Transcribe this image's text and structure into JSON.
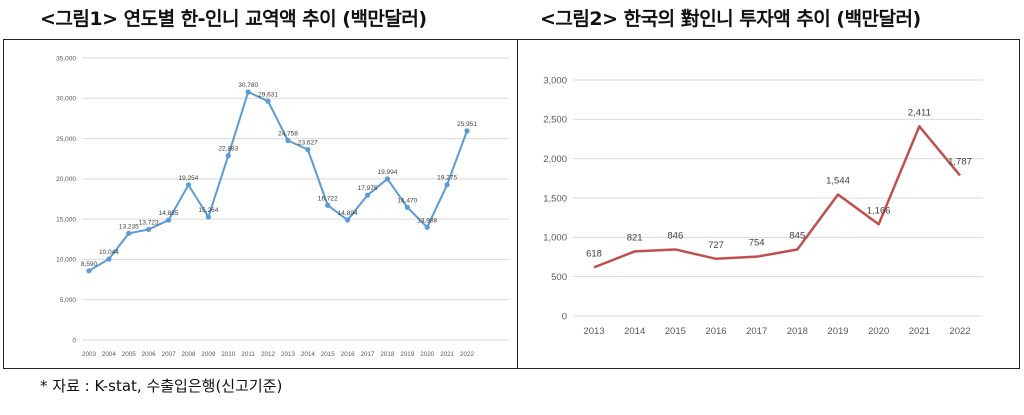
{
  "chart_data": [
    {
      "type": "line",
      "title": "<그림1> 연도별 한-인니 교역액 추이 (백만달러)",
      "xlabel": "",
      "ylabel": "",
      "categories": [
        "2003",
        "2004",
        "2005",
        "2006",
        "2007",
        "2008",
        "2009",
        "2010",
        "2011",
        "2012",
        "2013",
        "2014",
        "2015",
        "2016",
        "2017",
        "2018",
        "2019",
        "2020",
        "2021",
        "2022"
      ],
      "values": [
        8590,
        10044,
        13235,
        13723,
        14885,
        19254,
        15264,
        22883,
        30780,
        29631,
        24758,
        23627,
        16722,
        14894,
        17975,
        19994,
        16470,
        13988,
        19275,
        25951
      ],
      "value_labels": [
        "8,590",
        "10,044",
        "13,235",
        "13,723",
        "14,885",
        "19,254",
        "15,264",
        "22,883",
        "30,780",
        "29,631",
        "24,758",
        "23,627",
        "16,722",
        "14,894",
        "17,975",
        "19,994",
        "16,470",
        "13,988",
        "19,275",
        "25,951"
      ],
      "ylim": [
        0,
        35000
      ],
      "yticks": [
        0,
        5000,
        10000,
        15000,
        20000,
        25000,
        30000,
        35000
      ],
      "ytick_labels": [
        "0",
        "5,000",
        "10,000",
        "15,000",
        "20,000",
        "25,000",
        "30,000",
        "35,000"
      ],
      "grid": true,
      "color": "#5b9bd5"
    },
    {
      "type": "line",
      "title": "<그림2> 한국의 對인니 투자액 추이 (백만달러)",
      "xlabel": "",
      "ylabel": "",
      "categories": [
        "2013",
        "2014",
        "2015",
        "2016",
        "2017",
        "2018",
        "2019",
        "2020",
        "2021",
        "2022"
      ],
      "values": [
        618,
        821,
        846,
        727,
        754,
        845,
        1544,
        1166,
        2411,
        1787
      ],
      "value_labels": [
        "618",
        "821",
        "846",
        "727",
        "754",
        "845",
        "1,544",
        "1,166",
        "2,411",
        "1,787"
      ],
      "ylim": [
        0,
        3000
      ],
      "yticks": [
        0,
        500,
        1000,
        1500,
        2000,
        2500,
        3000
      ],
      "ytick_labels": [
        "0",
        "500",
        "1,000",
        "1,500",
        "2,000",
        "2,500",
        "3,000"
      ],
      "grid": true,
      "color": "#c0504d"
    }
  ],
  "footer": {
    "source": "* 자료 : K-stat, 수출입은행(신고기준)"
  }
}
